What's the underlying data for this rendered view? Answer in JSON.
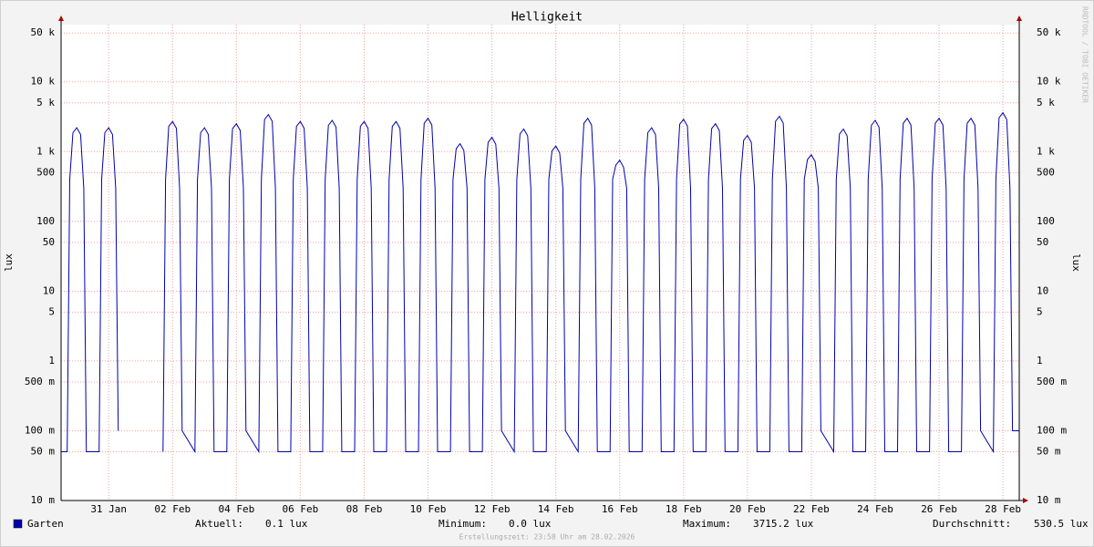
{
  "chart_data": {
    "type": "line",
    "title": "Helligkeit",
    "y_label": "lux",
    "log_y": true,
    "grid": true,
    "watermark": "RRDTOOL / TOBI OETIKER",
    "footer": "Erstellungszeit: 23:58 Uhr am 28.02.2026",
    "xlim": [
      29.51,
      59.51
    ],
    "ylim": [
      0.01,
      66000
    ],
    "xticks": [
      {
        "value": 31,
        "label": "31 Jan"
      },
      {
        "value": 33,
        "label": "02 Feb"
      },
      {
        "value": 35,
        "label": "04 Feb"
      },
      {
        "value": 37,
        "label": "06 Feb"
      },
      {
        "value": 39,
        "label": "08 Feb"
      },
      {
        "value": 41,
        "label": "10 Feb"
      },
      {
        "value": 43,
        "label": "12 Feb"
      },
      {
        "value": 45,
        "label": "14 Feb"
      },
      {
        "value": 47,
        "label": "16 Feb"
      },
      {
        "value": 49,
        "label": "18 Feb"
      },
      {
        "value": 51,
        "label": "20 Feb"
      },
      {
        "value": 53,
        "label": "22 Feb"
      },
      {
        "value": 55,
        "label": "24 Feb"
      },
      {
        "value": 57,
        "label": "26 Feb"
      },
      {
        "value": 59,
        "label": "28 Feb"
      }
    ],
    "yticks": [
      {
        "value": 0.01,
        "label": "10 m"
      },
      {
        "value": 0.05,
        "label": "50 m"
      },
      {
        "value": 0.1,
        "label": "100 m"
      },
      {
        "value": 0.5,
        "label": "500 m"
      },
      1,
      5,
      10,
      50,
      100,
      500,
      {
        "value": 1000,
        "label": "1 k"
      },
      {
        "value": 5000,
        "label": "5 k"
      },
      {
        "value": 10000,
        "label": "10 k"
      },
      {
        "value": 50000,
        "label": "50 k"
      }
    ],
    "x": [
      29.51,
      29.7,
      29.78,
      29.88,
      30,
      30.12,
      30.22,
      30.3,
      30.7,
      30.78,
      30.88,
      31,
      31.12,
      31.22,
      31.3,
      31.6,
      32.7,
      32.78,
      32.88,
      33,
      33.12,
      33.22,
      33.3,
      33.7,
      33.78,
      33.88,
      34,
      34.12,
      34.22,
      34.3,
      34.7,
      34.78,
      34.88,
      35,
      35.12,
      35.22,
      35.3,
      35.7,
      35.78,
      35.88,
      36,
      36.12,
      36.22,
      36.3,
      36.7,
      36.78,
      36.88,
      37,
      37.12,
      37.22,
      37.3,
      37.7,
      37.78,
      37.88,
      38,
      38.12,
      38.22,
      38.3,
      38.7,
      38.78,
      38.88,
      39,
      39.12,
      39.22,
      39.3,
      39.7,
      39.78,
      39.88,
      40,
      40.12,
      40.22,
      40.3,
      40.7,
      40.78,
      40.88,
      41,
      41.12,
      41.22,
      41.3,
      41.7,
      41.78,
      41.88,
      42,
      42.12,
      42.22,
      42.3,
      42.7,
      42.78,
      42.88,
      43,
      43.12,
      43.22,
      43.3,
      43.7,
      43.78,
      43.88,
      44,
      44.12,
      44.22,
      44.3,
      44.7,
      44.78,
      44.88,
      45,
      45.12,
      45.22,
      45.3,
      45.7,
      45.78,
      45.88,
      46,
      46.12,
      46.22,
      46.3,
      46.7,
      46.78,
      46.88,
      47,
      47.12,
      47.22,
      47.3,
      47.7,
      47.78,
      47.88,
      48,
      48.12,
      48.22,
      48.3,
      48.7,
      48.78,
      48.88,
      49,
      49.12,
      49.22,
      49.3,
      49.7,
      49.78,
      49.88,
      50,
      50.12,
      50.22,
      50.3,
      50.7,
      50.78,
      50.88,
      51,
      51.12,
      51.22,
      51.3,
      51.7,
      51.78,
      51.88,
      52,
      52.12,
      52.22,
      52.3,
      52.7,
      52.78,
      52.88,
      53,
      53.12,
      53.22,
      53.3,
      53.7,
      53.78,
      53.88,
      54,
      54.12,
      54.22,
      54.3,
      54.7,
      54.78,
      54.88,
      55,
      55.12,
      55.22,
      55.3,
      55.7,
      55.78,
      55.88,
      56,
      56.12,
      56.22,
      56.3,
      56.7,
      56.78,
      56.88,
      57,
      57.12,
      57.22,
      57.3,
      57.7,
      57.78,
      57.88,
      58,
      58.12,
      58.22,
      58.3,
      58.7,
      58.78,
      58.88,
      59,
      59.12,
      59.22,
      59.3,
      59.5
    ],
    "series": [
      {
        "name": "Garten",
        "color": "#0000aa",
        "values": [
          0.05,
          0.05,
          400,
          1870,
          2200,
          1760,
          300,
          0.05,
          0.05,
          400,
          1870,
          2200,
          1760,
          300,
          0.1,
          null,
          0.05,
          400,
          2300,
          2700,
          2160,
          300,
          0.1,
          0.05,
          400,
          1870,
          2200,
          1760,
          300,
          0.05,
          0.05,
          400,
          2130,
          2500,
          2000,
          300,
          0.1,
          0.05,
          400,
          2890,
          3400,
          2720,
          300,
          0.05,
          0.05,
          400,
          2300,
          2700,
          2160,
          300,
          0.05,
          0.05,
          400,
          2380,
          2800,
          2240,
          300,
          0.05,
          0.05,
          400,
          2300,
          2700,
          2160,
          300,
          0.05,
          0.05,
          400,
          2300,
          2700,
          2160,
          300,
          0.05,
          0.05,
          400,
          2550,
          3000,
          2400,
          300,
          0.05,
          0.05,
          400,
          1100,
          1300,
          1040,
          300,
          0.05,
          0.05,
          400,
          1360,
          1600,
          1280,
          300,
          0.1,
          0.05,
          400,
          1790,
          2100,
          1680,
          300,
          0.05,
          0.05,
          400,
          1020,
          1200,
          960,
          300,
          0.1,
          0.05,
          400,
          2550,
          3000,
          2400,
          300,
          0.05,
          0.05,
          400,
          640,
          750,
          600,
          300,
          0.05,
          0.05,
          400,
          1870,
          2200,
          1760,
          300,
          0.05,
          0.05,
          400,
          2470,
          2900,
          2320,
          300,
          0.05,
          0.05,
          400,
          2130,
          2500,
          2000,
          300,
          0.05,
          0.05,
          400,
          1450,
          1700,
          1360,
          300,
          0.05,
          0.05,
          400,
          2720,
          3200,
          2560,
          300,
          0.05,
          0.05,
          400,
          770,
          900,
          720,
          300,
          0.1,
          0.05,
          400,
          1790,
          2100,
          1680,
          300,
          0.05,
          0.05,
          400,
          2380,
          2800,
          2240,
          300,
          0.05,
          0.05,
          400,
          2550,
          3000,
          2400,
          300,
          0.05,
          0.05,
          400,
          2550,
          3000,
          2400,
          300,
          0.05,
          0.05,
          400,
          2550,
          3000,
          2400,
          300,
          0.1,
          0.05,
          400,
          3060,
          3600,
          2880,
          300,
          0.1,
          0.1
        ]
      }
    ],
    "stats": [
      {
        "label": "Aktuell:",
        "value": "0.1 lux"
      },
      {
        "label": "Minimum:",
        "value": "0.0 lux"
      },
      {
        "label": "Maximum:",
        "value": "3715.2 lux"
      },
      {
        "label": "Durchschnitt:",
        "value": "530.5 lux"
      }
    ]
  }
}
